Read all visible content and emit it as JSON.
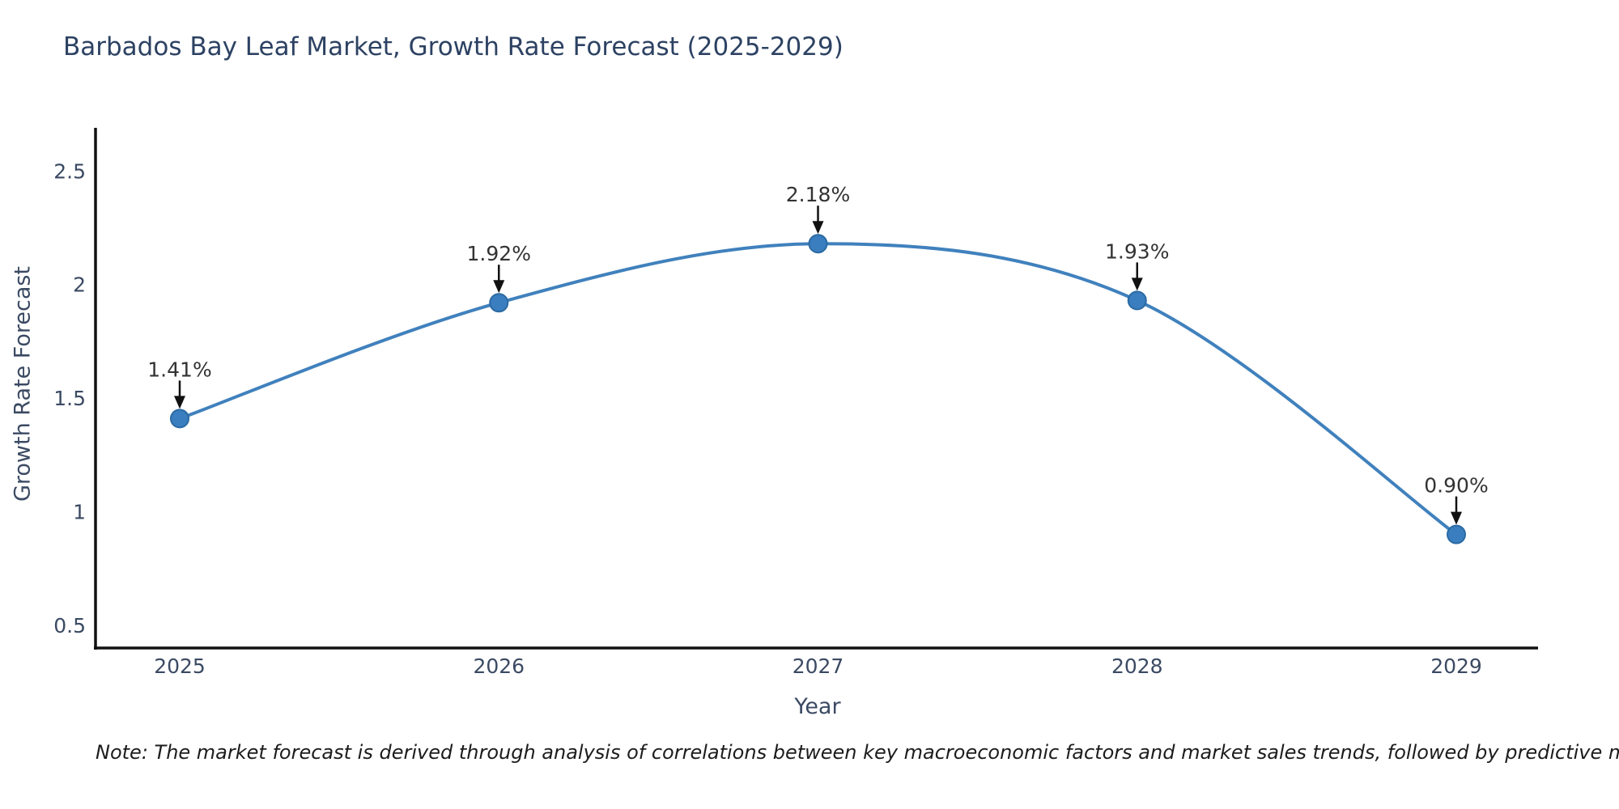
{
  "title": "Barbados Bay Leaf Market, Growth Rate Forecast (2025-2029)",
  "note": "Note: The market forecast is derived through analysis of correlations between key macroeconomic factors and market sales trends, followed by predictive modeling to project future sales",
  "chart_data": {
    "type": "line",
    "title": "Barbados Bay Leaf Market, Growth Rate Forecast (2025-2029)",
    "xlabel": "Year",
    "ylabel": "Growth Rate Forecast",
    "x": [
      "2025",
      "2026",
      "2027",
      "2028",
      "2029"
    ],
    "values": [
      1.41,
      1.92,
      2.18,
      1.93,
      0.9
    ],
    "point_labels": [
      "1.41%",
      "1.92%",
      "2.18%",
      "1.93%",
      "0.90%"
    ],
    "yticks": [
      0.5,
      1,
      1.5,
      2,
      2.5
    ],
    "ytick_labels": [
      "0.5",
      "1",
      "1.5",
      "2",
      "2.5"
    ],
    "ylim": [
      0.4,
      2.69
    ],
    "grid": false,
    "legend_position": "none",
    "line_smoothing": "spline",
    "colors": {
      "line": "#4081bd",
      "marker_fill": "#3a7ebf",
      "marker_edge": "#2b6aa3",
      "axis": "#111111",
      "tick_label": "#3b4a63",
      "annotation_text": "#333333",
      "annotation_arrow": "#111111",
      "title": "#2d4263"
    }
  }
}
